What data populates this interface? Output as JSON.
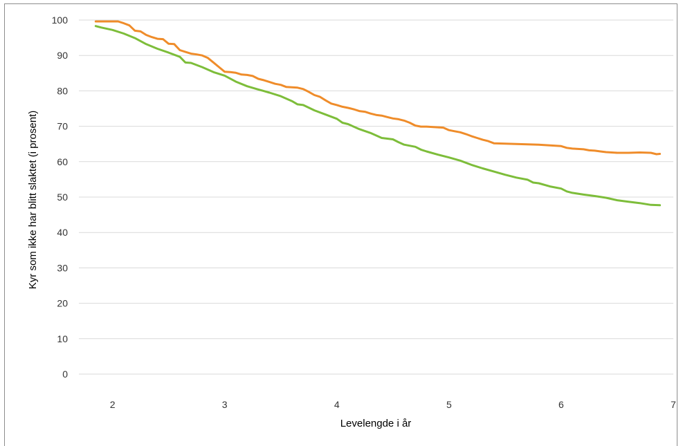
{
  "chart_data": {
    "type": "line",
    "title": "",
    "xlabel": "Levelengde i år",
    "ylabel": "Kyr som ikke har blitt slaktet (i prosent)",
    "xlim": [
      1.7,
      7.0
    ],
    "ylim": [
      0,
      100
    ],
    "xticks": [
      2,
      3,
      4,
      5,
      6,
      7
    ],
    "yticks": [
      0,
      10,
      20,
      30,
      40,
      50,
      60,
      70,
      80,
      90,
      100
    ],
    "grid": "horizontal",
    "legend": "none",
    "colors": {
      "series_1": "#ef8c2a",
      "series_2": "#7dbd3a",
      "grid": "#d9d9d9",
      "frame": "#8c8c8c"
    },
    "series": [
      {
        "values_xy": [
          [
            1.85,
            99.6
          ],
          [
            1.95,
            99.6
          ],
          [
            2.05,
            99.6
          ],
          [
            2.1,
            99.1
          ],
          [
            2.15,
            98.5
          ],
          [
            2.2,
            97.0
          ],
          [
            2.25,
            96.8
          ],
          [
            2.3,
            95.8
          ],
          [
            2.35,
            95.2
          ],
          [
            2.4,
            94.7
          ],
          [
            2.45,
            94.6
          ],
          [
            2.5,
            93.3
          ],
          [
            2.55,
            93.2
          ],
          [
            2.6,
            91.5
          ],
          [
            2.65,
            91.0
          ],
          [
            2.7,
            90.5
          ],
          [
            2.75,
            90.3
          ],
          [
            2.8,
            90.0
          ],
          [
            2.85,
            89.3
          ],
          [
            2.9,
            88.0
          ],
          [
            2.95,
            86.7
          ],
          [
            3.0,
            85.4
          ],
          [
            3.05,
            85.3
          ],
          [
            3.1,
            85.1
          ],
          [
            3.15,
            84.6
          ],
          [
            3.2,
            84.5
          ],
          [
            3.25,
            84.2
          ],
          [
            3.3,
            83.4
          ],
          [
            3.35,
            83.0
          ],
          [
            3.4,
            82.5
          ],
          [
            3.45,
            82.0
          ],
          [
            3.5,
            81.7
          ],
          [
            3.55,
            81.1
          ],
          [
            3.6,
            81.0
          ],
          [
            3.65,
            80.9
          ],
          [
            3.7,
            80.5
          ],
          [
            3.75,
            79.7
          ],
          [
            3.8,
            78.8
          ],
          [
            3.85,
            78.3
          ],
          [
            3.9,
            77.3
          ],
          [
            3.95,
            76.4
          ],
          [
            4.0,
            76.0
          ],
          [
            4.05,
            75.5
          ],
          [
            4.1,
            75.2
          ],
          [
            4.15,
            74.8
          ],
          [
            4.2,
            74.3
          ],
          [
            4.25,
            74.1
          ],
          [
            4.3,
            73.6
          ],
          [
            4.35,
            73.2
          ],
          [
            4.4,
            73.0
          ],
          [
            4.45,
            72.6
          ],
          [
            4.5,
            72.2
          ],
          [
            4.55,
            72.0
          ],
          [
            4.6,
            71.6
          ],
          [
            4.65,
            71.0
          ],
          [
            4.7,
            70.2
          ],
          [
            4.75,
            69.9
          ],
          [
            4.8,
            69.9
          ],
          [
            4.85,
            69.8
          ],
          [
            4.9,
            69.7
          ],
          [
            4.95,
            69.6
          ],
          [
            5.0,
            68.9
          ],
          [
            5.05,
            68.6
          ],
          [
            5.1,
            68.3
          ],
          [
            5.15,
            67.8
          ],
          [
            5.2,
            67.2
          ],
          [
            5.25,
            66.7
          ],
          [
            5.3,
            66.2
          ],
          [
            5.35,
            65.8
          ],
          [
            5.4,
            65.2
          ],
          [
            5.5,
            65.1
          ],
          [
            5.6,
            65.0
          ],
          [
            5.7,
            64.9
          ],
          [
            5.8,
            64.8
          ],
          [
            5.9,
            64.6
          ],
          [
            6.0,
            64.4
          ],
          [
            6.05,
            63.9
          ],
          [
            6.1,
            63.7
          ],
          [
            6.15,
            63.6
          ],
          [
            6.2,
            63.5
          ],
          [
            6.25,
            63.2
          ],
          [
            6.3,
            63.1
          ],
          [
            6.35,
            62.9
          ],
          [
            6.4,
            62.7
          ],
          [
            6.5,
            62.5
          ],
          [
            6.6,
            62.5
          ],
          [
            6.7,
            62.6
          ],
          [
            6.8,
            62.5
          ],
          [
            6.85,
            62.1
          ],
          [
            6.88,
            62.2
          ]
        ]
      },
      {
        "values_xy": [
          [
            1.85,
            98.3
          ],
          [
            1.9,
            97.9
          ],
          [
            2.0,
            97.2
          ],
          [
            2.1,
            96.2
          ],
          [
            2.2,
            94.9
          ],
          [
            2.3,
            93.2
          ],
          [
            2.4,
            91.9
          ],
          [
            2.5,
            90.8
          ],
          [
            2.6,
            89.6
          ],
          [
            2.65,
            88.0
          ],
          [
            2.7,
            87.9
          ],
          [
            2.8,
            86.7
          ],
          [
            2.9,
            85.3
          ],
          [
            3.0,
            84.3
          ],
          [
            3.1,
            82.6
          ],
          [
            3.2,
            81.3
          ],
          [
            3.3,
            80.4
          ],
          [
            3.4,
            79.5
          ],
          [
            3.5,
            78.5
          ],
          [
            3.6,
            77.1
          ],
          [
            3.65,
            76.2
          ],
          [
            3.7,
            76.0
          ],
          [
            3.8,
            74.5
          ],
          [
            3.9,
            73.3
          ],
          [
            4.0,
            72.1
          ],
          [
            4.05,
            71.0
          ],
          [
            4.1,
            70.6
          ],
          [
            4.2,
            69.2
          ],
          [
            4.3,
            68.1
          ],
          [
            4.35,
            67.4
          ],
          [
            4.4,
            66.7
          ],
          [
            4.5,
            66.3
          ],
          [
            4.55,
            65.5
          ],
          [
            4.6,
            64.8
          ],
          [
            4.7,
            64.2
          ],
          [
            4.75,
            63.4
          ],
          [
            4.8,
            62.9
          ],
          [
            4.9,
            62.0
          ],
          [
            5.0,
            61.2
          ],
          [
            5.1,
            60.3
          ],
          [
            5.2,
            59.1
          ],
          [
            5.3,
            58.1
          ],
          [
            5.4,
            57.2
          ],
          [
            5.5,
            56.3
          ],
          [
            5.6,
            55.5
          ],
          [
            5.7,
            54.9
          ],
          [
            5.75,
            54.1
          ],
          [
            5.8,
            53.9
          ],
          [
            5.9,
            53.0
          ],
          [
            6.0,
            52.4
          ],
          [
            6.05,
            51.6
          ],
          [
            6.1,
            51.2
          ],
          [
            6.2,
            50.7
          ],
          [
            6.3,
            50.3
          ],
          [
            6.4,
            49.8
          ],
          [
            6.5,
            49.1
          ],
          [
            6.6,
            48.7
          ],
          [
            6.7,
            48.3
          ],
          [
            6.8,
            47.8
          ],
          [
            6.88,
            47.7
          ]
        ]
      }
    ]
  }
}
